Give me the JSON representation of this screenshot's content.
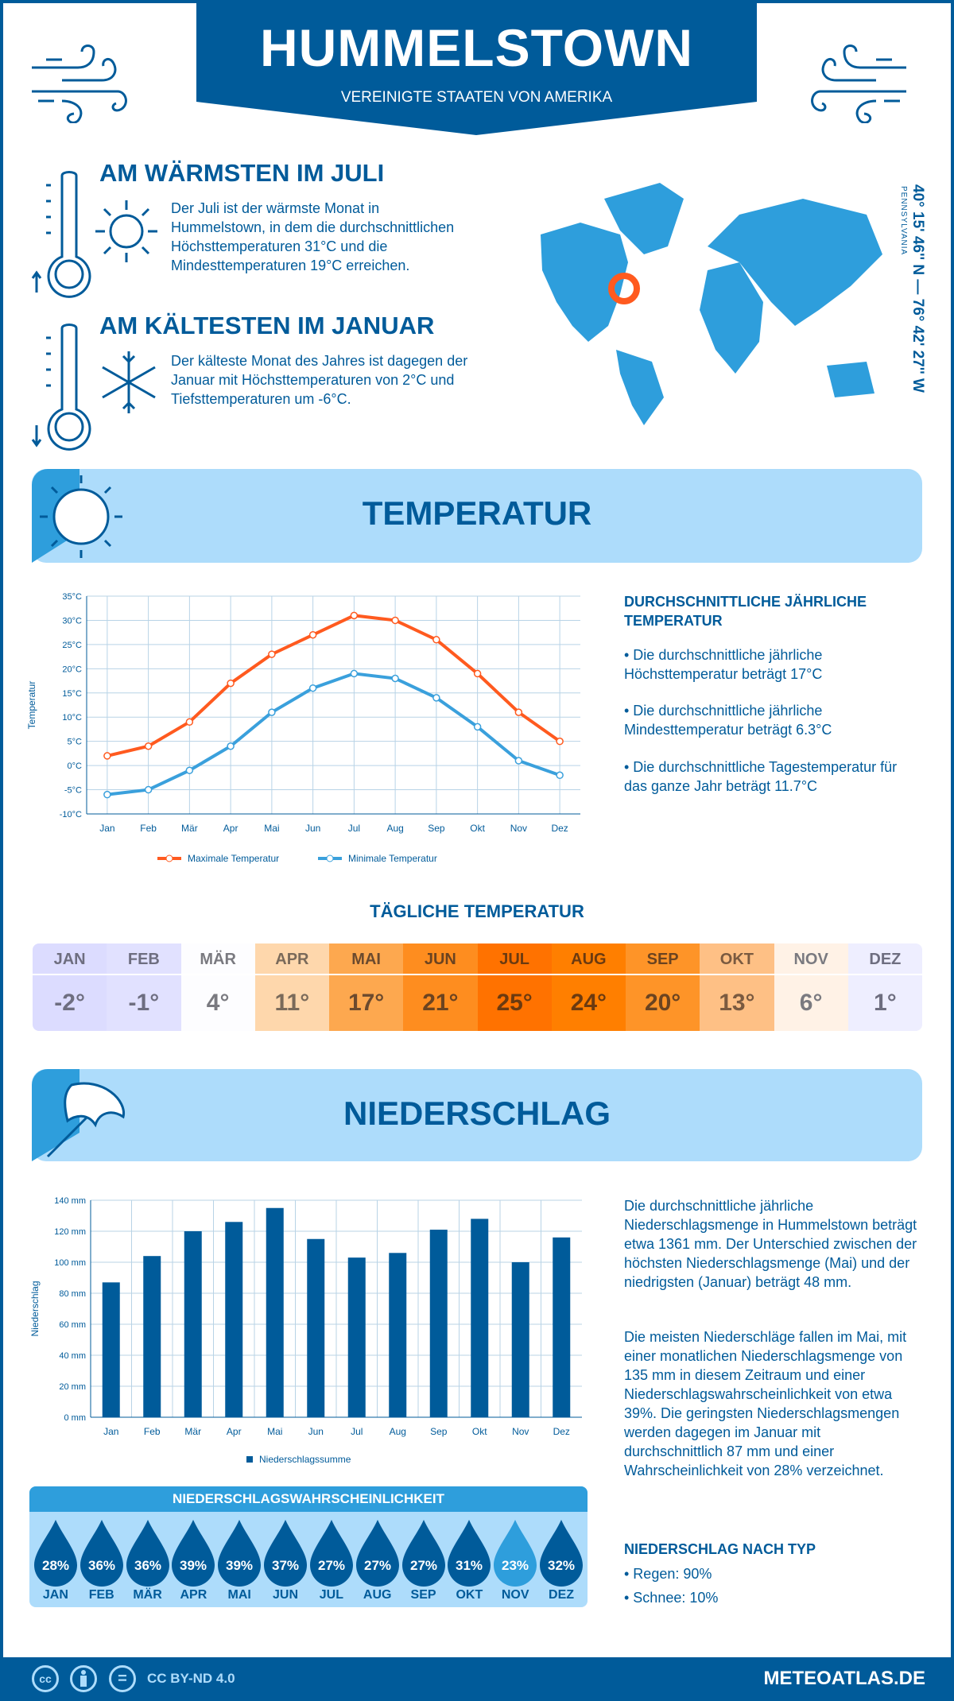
{
  "header": {
    "title": "HUMMELSTOWN",
    "subtitle": "VEREINIGTE STAATEN VON AMERIKA"
  },
  "warmest": {
    "title": "AM WÄRMSTEN IM JULI",
    "text": "Der Juli ist der wärmste Monat in Hummelstown, in dem die durchschnittlichen Höchsttemperaturen 31°C und die Mindesttemperaturen 19°C erreichen."
  },
  "coldest": {
    "title": "AM KÄLTESTEN IM JANUAR",
    "text": "Der kälteste Monat des Jahres ist dagegen der Januar mit Höchsttemperaturen von 2°C und Tiefsttemperaturen um -6°C."
  },
  "location": {
    "coordinates": "40° 15' 46'' N — 76° 42' 27'' W",
    "region": "PENNSYLVANIA"
  },
  "temperature_section": {
    "title": "TEMPERATUR",
    "summary_title": "DURCHSCHNITTLICHE JÄHRLICHE TEMPERATUR",
    "bullets": [
      "• Die durchschnittliche jährliche Höchsttemperatur beträgt 17°C",
      "• Die durchschnittliche jährliche Mindesttemperatur beträgt 6.3°C",
      "• Die durchschnittliche Tagestemperatur für das ganze Jahr beträgt 11.7°C"
    ]
  },
  "chart_data": [
    {
      "type": "line",
      "ylabel": "Temperatur",
      "ylim": [
        -10,
        35
      ],
      "yticks": [
        "-10°C",
        "-5°C",
        "0°C",
        "5°C",
        "10°C",
        "15°C",
        "20°C",
        "25°C",
        "30°C",
        "35°C"
      ],
      "grid": true,
      "legend": "bottom",
      "categories": [
        "Jan",
        "Feb",
        "Mär",
        "Apr",
        "Mai",
        "Jun",
        "Jul",
        "Aug",
        "Sep",
        "Okt",
        "Nov",
        "Dez"
      ],
      "series": [
        {
          "name": "Maximale Temperatur",
          "color": "#ff5a1f",
          "values": [
            2,
            4,
            9,
            17,
            23,
            27,
            31,
            30,
            26,
            19,
            11,
            5
          ]
        },
        {
          "name": "Minimale Temperatur",
          "color": "#3aa0dc",
          "values": [
            -6,
            -5,
            -1,
            4,
            11,
            16,
            19,
            18,
            14,
            8,
            1,
            -2
          ]
        }
      ]
    },
    {
      "type": "bar",
      "ylabel": "Niederschlag",
      "ylim": [
        0,
        140
      ],
      "yticks": [
        "0 mm",
        "20 mm",
        "40 mm",
        "60 mm",
        "80 mm",
        "100 mm",
        "120 mm",
        "140 mm"
      ],
      "grid": true,
      "legend": "bottom",
      "categories": [
        "Jan",
        "Feb",
        "Mär",
        "Apr",
        "Mai",
        "Jun",
        "Jul",
        "Aug",
        "Sep",
        "Okt",
        "Nov",
        "Dez"
      ],
      "series": [
        {
          "name": "Niederschlagssumme",
          "color": "#005b9a",
          "values": [
            87,
            104,
            120,
            126,
            135,
            115,
            103,
            106,
            121,
            128,
            100,
            116
          ]
        }
      ]
    }
  ],
  "daily": {
    "title": "TÄGLICHE TEMPERATUR",
    "months": [
      {
        "m": "JAN",
        "v": "-2°",
        "bg": "#dcdcff",
        "fg": "#6e6e80"
      },
      {
        "m": "FEB",
        "v": "-1°",
        "bg": "#e1e1ff",
        "fg": "#6e6e80"
      },
      {
        "m": "MÄR",
        "v": "4°",
        "bg": "#fdfdff",
        "fg": "#7a7a80"
      },
      {
        "m": "APR",
        "v": "11°",
        "bg": "#fed7ac",
        "fg": "#7a6a5a"
      },
      {
        "m": "MAI",
        "v": "17°",
        "bg": "#fda84f",
        "fg": "#6b4a2e"
      },
      {
        "m": "JUN",
        "v": "21°",
        "bg": "#fe8d1f",
        "fg": "#6b4320"
      },
      {
        "m": "JUL",
        "v": "25°",
        "bg": "#ff7200",
        "fg": "#6b3a10"
      },
      {
        "m": "AUG",
        "v": "24°",
        "bg": "#ff7f00",
        "fg": "#6b3a10"
      },
      {
        "m": "SEP",
        "v": "20°",
        "bg": "#fe9428",
        "fg": "#6b4320"
      },
      {
        "m": "OKT",
        "v": "13°",
        "bg": "#fec085",
        "fg": "#7a5a40"
      },
      {
        "m": "NOV",
        "v": "6°",
        "bg": "#fff2e6",
        "fg": "#7a7a80"
      },
      {
        "m": "DEZ",
        "v": "1°",
        "bg": "#eeeeff",
        "fg": "#6e6e80"
      }
    ]
  },
  "precip_section": {
    "title": "NIEDERSCHLAG",
    "text1": "Die durchschnittliche jährliche Niederschlagsmenge in Hummelstown beträgt etwa 1361 mm. Der Unterschied zwischen der höchsten Niederschlagsmenge (Mai) und der niedrigsten (Januar) beträgt 48 mm.",
    "text2": "Die meisten Niederschläge fallen im Mai, mit einer monatlichen Niederschlagsmenge von 135 mm in diesem Zeitraum und einer Niederschlagswahrscheinlichkeit von etwa 39%. Die geringsten Niederschlagsmengen werden dagegen im Januar mit durchschnittlich 87 mm und einer Wahrscheinlichkeit von 28% verzeichnet.",
    "type_title": "NIEDERSCHLAG NACH TYP",
    "types": [
      "• Regen: 90%",
      "• Schnee: 10%"
    ]
  },
  "probability": {
    "title": "NIEDERSCHLAGSWAHRSCHEINLICHKEIT",
    "months": [
      {
        "m": "JAN",
        "p": "28%"
      },
      {
        "m": "FEB",
        "p": "36%"
      },
      {
        "m": "MÄR",
        "p": "36%"
      },
      {
        "m": "APR",
        "p": "39%"
      },
      {
        "m": "MAI",
        "p": "39%"
      },
      {
        "m": "JUN",
        "p": "37%"
      },
      {
        "m": "JUL",
        "p": "27%"
      },
      {
        "m": "AUG",
        "p": "27%"
      },
      {
        "m": "SEP",
        "p": "27%"
      },
      {
        "m": "OKT",
        "p": "31%"
      },
      {
        "m": "NOV",
        "p": "23%",
        "light": true
      },
      {
        "m": "DEZ",
        "p": "32%"
      }
    ]
  },
  "footer": {
    "license": "CC BY-ND 4.0",
    "site": "METEOATLAS.DE",
    "cc": "cc",
    "eq": "="
  },
  "colors": {
    "dark": "#005b9a",
    "mid": "#2e9edc",
    "light": "#addcfb",
    "accent": "#ff5a1f"
  }
}
